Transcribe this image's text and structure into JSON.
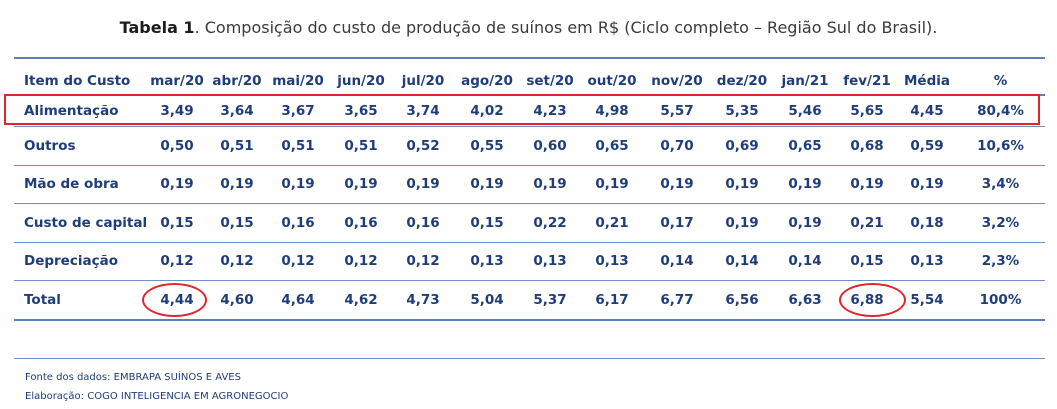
{
  "caption": {
    "label": "Tabela 1",
    "text": ". Composição do custo de produção de suínos em R$ (Ciclo completo – Região Sul do Brasil)."
  },
  "table": {
    "headers": [
      "Item do Custo",
      "mar/20",
      "abr/20",
      "mai/20",
      "jun/20",
      "jul/20",
      "ago/20",
      "set/20",
      "out/20",
      "nov/20",
      "dez/20",
      "jan/21",
      "fev/21",
      "Média",
      "%"
    ],
    "rows": [
      {
        "label": "Alimentação",
        "cells": [
          "3,49",
          "3,64",
          "3,67",
          "3,65",
          "3,74",
          "4,02",
          "4,23",
          "4,98",
          "5,57",
          "5,35",
          "5,46",
          "5,65",
          "4,45",
          "80,4%"
        ]
      },
      {
        "label": "Outros",
        "cells": [
          "0,50",
          "0,51",
          "0,51",
          "0,51",
          "0,52",
          "0,55",
          "0,60",
          "0,65",
          "0,70",
          "0,69",
          "0,65",
          "0,68",
          "0,59",
          "10,6%"
        ]
      },
      {
        "label": "Mão de obra",
        "cells": [
          "0,19",
          "0,19",
          "0,19",
          "0,19",
          "0,19",
          "0,19",
          "0,19",
          "0,19",
          "0,19",
          "0,19",
          "0,19",
          "0,19",
          "0,19",
          "3,4%"
        ]
      },
      {
        "label": "Custo de capital",
        "cells": [
          "0,15",
          "0,15",
          "0,16",
          "0,16",
          "0,16",
          "0,15",
          "0,22",
          "0,21",
          "0,17",
          "0,19",
          "0,19",
          "0,21",
          "0,18",
          "3,2%"
        ]
      },
      {
        "label": "Depreciação",
        "cells": [
          "0,12",
          "0,12",
          "0,12",
          "0,12",
          "0,12",
          "0,13",
          "0,13",
          "0,13",
          "0,14",
          "0,14",
          "0,14",
          "0,15",
          "0,13",
          "2,3%"
        ]
      },
      {
        "label": "Total",
        "cells": [
          "4,44",
          "4,60",
          "4,64",
          "4,62",
          "4,73",
          "5,04",
          "5,37",
          "6,17",
          "6,77",
          "6,56",
          "6,63",
          "6,88",
          "5,54",
          "100%"
        ]
      }
    ]
  },
  "annotations": {
    "color": "#e0262b",
    "highlighted_row": "Alimentação",
    "circled_cells": [
      "4,44",
      "6,88"
    ]
  },
  "footer": {
    "source": "Fonte dos dados: EMBRAPA SUÍNOS E AVES",
    "elaboration": "Elaboração: COGO INTELIGENCIA EM AGRONEGOCIO"
  }
}
